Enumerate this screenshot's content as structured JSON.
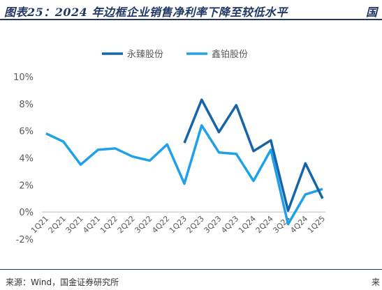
{
  "header": {
    "title": "图表25：2024 年边框企业销售净利率下降至较低水平",
    "title_right": "国"
  },
  "footer": {
    "source": "来源：Wind，国金证券研究所",
    "source_right": "来"
  },
  "chart_data": {
    "type": "line",
    "title": "",
    "xlabel": "",
    "ylabel": "",
    "categories": [
      "1Q21",
      "2Q21",
      "3Q21",
      "4Q21",
      "1Q22",
      "2Q22",
      "3Q22",
      "4Q22",
      "1Q23",
      "2Q23",
      "3Q23",
      "4Q23",
      "1Q24",
      "2Q24",
      "3Q24",
      "4Q24",
      "1Q25"
    ],
    "y_ticks": [
      "10%",
      "8%",
      "6%",
      "4%",
      "2%",
      "0%",
      "-2%"
    ],
    "y_tick_values": [
      10,
      8,
      6,
      4,
      2,
      0,
      -2
    ],
    "ylim": [
      -2,
      10
    ],
    "legend_position": "top-center",
    "grid": false,
    "series": [
      {
        "name": "永臻股份",
        "color": "#1565a8",
        "values": [
          null,
          null,
          null,
          null,
          null,
          null,
          null,
          null,
          5.1,
          8.3,
          5.9,
          7.9,
          4.5,
          5.3,
          0.1,
          3.6,
          1.0
        ]
      },
      {
        "name": "鑫铂股份",
        "color": "#1ea1e8",
        "values": [
          5.8,
          5.2,
          3.5,
          4.6,
          4.7,
          4.1,
          3.8,
          5.0,
          2.1,
          6.4,
          4.4,
          4.3,
          2.3,
          4.6,
          -0.9,
          1.3,
          1.7
        ]
      }
    ]
  }
}
